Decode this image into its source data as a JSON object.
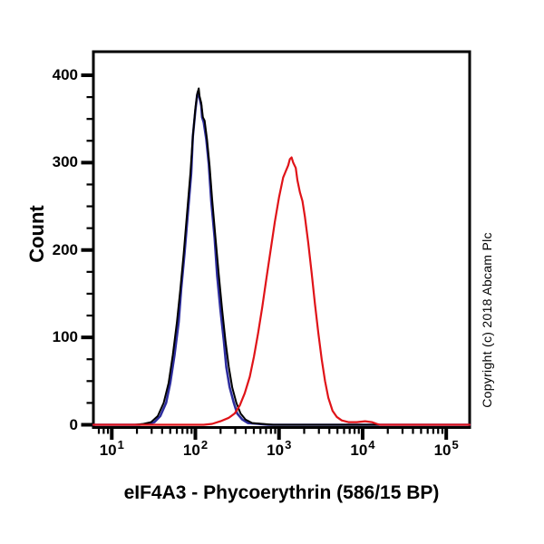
{
  "figure": {
    "title": "eIF4A3 - Phycoerythrin (586/15 BP)",
    "y_axis_title": "Count",
    "copyright_text": "Copyright (c) 2018 Abcam Plc",
    "background_color": "#ffffff",
    "axis_color": "#000000"
  },
  "chart_data": {
    "type": "line",
    "subtype": "flow-cytometry-histogram-overlay",
    "title": "eIF4A3 - Phycoerythrin (586/15 BP)",
    "xlabel": "eIF4A3 - Phycoerythrin (586/15 BP)",
    "ylabel": "Count",
    "grid": false,
    "legend": null,
    "x_scale": "log10",
    "x_axis": {
      "min_log10": 0.78,
      "max_log10": 5.28,
      "major_ticks": [
        {
          "value": 10,
          "log10": 1,
          "label_base": "10",
          "label_exp": "1"
        },
        {
          "value": 100,
          "log10": 2,
          "label_base": "10",
          "label_exp": "2"
        },
        {
          "value": 1000,
          "log10": 3,
          "label_base": "10",
          "label_exp": "3"
        },
        {
          "value": 10000,
          "log10": 4,
          "label_base": "10",
          "label_exp": "4"
        },
        {
          "value": 100000,
          "log10": 5,
          "label_base": "10",
          "label_exp": "5"
        }
      ],
      "minor_tick_multiples": [
        2,
        3,
        4,
        5,
        6,
        7,
        8,
        9
      ]
    },
    "y_axis": {
      "min": 0,
      "max": 427,
      "major_ticks": [
        {
          "value": 0,
          "label": "0"
        },
        {
          "value": 100,
          "label": "100"
        },
        {
          "value": 200,
          "label": "200"
        },
        {
          "value": 300,
          "label": "300"
        },
        {
          "value": 400,
          "label": "400"
        }
      ],
      "minor_tick_step": 25
    },
    "series": [
      {
        "name": "blue_control_curve",
        "color": "#2d2d9e",
        "stroke_width": 2.6,
        "peak": {
          "x_log10": 2.03,
          "count": 381
        },
        "points_log10x_count": [
          [
            0.78,
            0
          ],
          [
            1.33,
            0
          ],
          [
            1.43,
            1
          ],
          [
            1.51,
            3
          ],
          [
            1.58,
            10
          ],
          [
            1.65,
            25
          ],
          [
            1.7,
            48
          ],
          [
            1.75,
            80
          ],
          [
            1.8,
            118
          ],
          [
            1.83,
            155
          ],
          [
            1.87,
            196
          ],
          [
            1.91,
            242
          ],
          [
            1.95,
            288
          ],
          [
            1.97,
            330
          ],
          [
            2.0,
            360
          ],
          [
            2.02,
            377
          ],
          [
            2.03,
            381
          ],
          [
            2.05,
            374
          ],
          [
            2.07,
            365
          ],
          [
            2.08,
            352
          ],
          [
            2.1,
            346
          ],
          [
            2.13,
            327
          ],
          [
            2.16,
            298
          ],
          [
            2.19,
            256
          ],
          [
            2.23,
            214
          ],
          [
            2.26,
            171
          ],
          [
            2.3,
            131
          ],
          [
            2.34,
            96
          ],
          [
            2.37,
            66
          ],
          [
            2.41,
            43
          ],
          [
            2.46,
            25
          ],
          [
            2.5,
            13
          ],
          [
            2.56,
            6
          ],
          [
            2.63,
            2
          ],
          [
            2.75,
            1
          ],
          [
            2.87,
            0
          ],
          [
            5.28,
            0
          ]
        ]
      },
      {
        "name": "black_control_curve",
        "color": "#000000",
        "stroke_width": 2,
        "peak": {
          "x_log10": 2.04,
          "count": 385
        },
        "points_log10x_count": [
          [
            0.78,
            0
          ],
          [
            1.28,
            0
          ],
          [
            1.38,
            1
          ],
          [
            1.47,
            3
          ],
          [
            1.55,
            10
          ],
          [
            1.62,
            25
          ],
          [
            1.68,
            48
          ],
          [
            1.73,
            80
          ],
          [
            1.78,
            118
          ],
          [
            1.82,
            155
          ],
          [
            1.86,
            196
          ],
          [
            1.9,
            242
          ],
          [
            1.94,
            288
          ],
          [
            1.97,
            330
          ],
          [
            2.0,
            362
          ],
          [
            2.02,
            378
          ],
          [
            2.04,
            385
          ],
          [
            2.05,
            376
          ],
          [
            2.07,
            368
          ],
          [
            2.09,
            352
          ],
          [
            2.11,
            348
          ],
          [
            2.14,
            326
          ],
          [
            2.17,
            296
          ],
          [
            2.2,
            258
          ],
          [
            2.24,
            215
          ],
          [
            2.28,
            172
          ],
          [
            2.32,
            132
          ],
          [
            2.36,
            96
          ],
          [
            2.4,
            66
          ],
          [
            2.44,
            43
          ],
          [
            2.49,
            25
          ],
          [
            2.54,
            13
          ],
          [
            2.6,
            6
          ],
          [
            2.68,
            2
          ],
          [
            2.8,
            1
          ],
          [
            2.93,
            0
          ],
          [
            5.28,
            0
          ]
        ]
      },
      {
        "name": "red_eif4a3_pe_curve",
        "color": "#e01318",
        "stroke_width": 2.2,
        "peak": {
          "x_log10": 3.15,
          "count": 306
        },
        "points_log10x_count": [
          [
            0.78,
            0
          ],
          [
            2.1,
            0
          ],
          [
            2.2,
            1
          ],
          [
            2.3,
            4
          ],
          [
            2.4,
            8
          ],
          [
            2.47,
            13
          ],
          [
            2.53,
            22
          ],
          [
            2.59,
            36
          ],
          [
            2.65,
            55
          ],
          [
            2.7,
            78
          ],
          [
            2.75,
            105
          ],
          [
            2.8,
            135
          ],
          [
            2.85,
            168
          ],
          [
            2.9,
            200
          ],
          [
            2.95,
            232
          ],
          [
            3.0,
            260
          ],
          [
            3.05,
            283
          ],
          [
            3.08,
            290
          ],
          [
            3.11,
            297
          ],
          [
            3.13,
            304
          ],
          [
            3.15,
            306
          ],
          [
            3.17,
            300
          ],
          [
            3.2,
            294
          ],
          [
            3.22,
            280
          ],
          [
            3.25,
            266
          ],
          [
            3.28,
            256
          ],
          [
            3.31,
            238
          ],
          [
            3.35,
            208
          ],
          [
            3.39,
            174
          ],
          [
            3.43,
            138
          ],
          [
            3.47,
            105
          ],
          [
            3.51,
            75
          ],
          [
            3.55,
            50
          ],
          [
            3.59,
            31
          ],
          [
            3.64,
            16
          ],
          [
            3.69,
            9
          ],
          [
            3.75,
            5
          ],
          [
            3.83,
            3
          ],
          [
            3.93,
            3
          ],
          [
            4.03,
            4
          ],
          [
            4.11,
            3
          ],
          [
            4.17,
            1
          ],
          [
            4.21,
            0
          ],
          [
            5.28,
            0
          ]
        ]
      }
    ]
  }
}
